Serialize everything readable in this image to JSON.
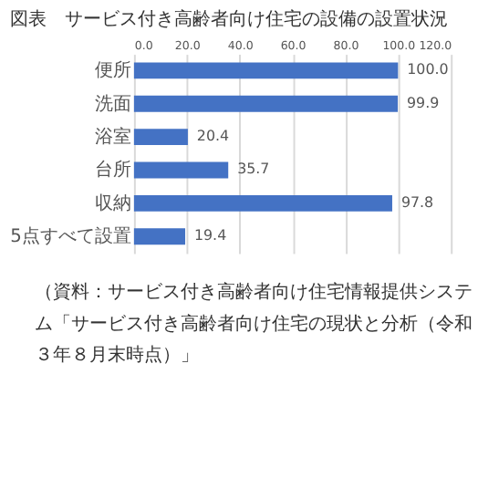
{
  "chart_data": {
    "type": "bar",
    "orientation": "horizontal",
    "title": "図表　サービス付き高齢者向け住宅の設備の設置状況",
    "categories": [
      "便所",
      "洗面",
      "浴室",
      "台所",
      "収納",
      "5点すべて設置"
    ],
    "values": [
      100.0,
      99.9,
      20.4,
      35.7,
      97.8,
      19.4
    ],
    "value_labels": [
      "100.0",
      "99.9",
      "20.4",
      "35.7",
      "97.8",
      "19.4"
    ],
    "color": "#4472c4",
    "xlim": [
      0,
      120
    ],
    "xticks": [
      {
        "value": 0,
        "label": "0.0"
      },
      {
        "value": 20,
        "label": "20.0"
      },
      {
        "value": 40,
        "label": "40.0"
      },
      {
        "value": 60,
        "label": "60.0"
      },
      {
        "value": 80,
        "label": "80.0"
      },
      {
        "value": 100,
        "label": "100.0"
      },
      {
        "value": 120,
        "label": "120.0"
      }
    ],
    "grid": "x",
    "annotations": [
      "（資料：サービス付き高齢者向け住宅情報提供システム「サービス付き高齢者向け住宅の現状と分析（令和３年８月末時点）」"
    ]
  }
}
